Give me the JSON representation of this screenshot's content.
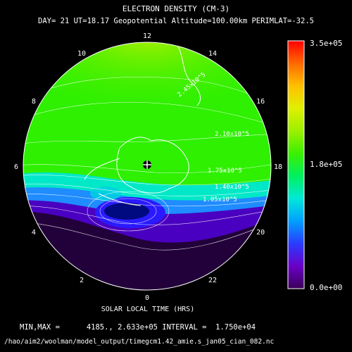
{
  "chart_data": {
    "type": "heatmap",
    "title": "ELECTRON DENSITY (CM-3)",
    "subtitle": "DAY= 21 UT=18.17 Geopotential Altitude=100.00km PERIMLAT=-32.5",
    "xlabel": "SOLAR LOCAL TIME (HRS)",
    "local_time_labels": [
      "12",
      "14",
      "16",
      "18",
      "20",
      "22",
      "0",
      "2",
      "4",
      "6",
      "8",
      "10"
    ],
    "local_time_hours": [
      12,
      14,
      16,
      18,
      20,
      22,
      0,
      2,
      4,
      6,
      8,
      10
    ],
    "colorbar": {
      "ticks": [
        "3.5e+05",
        "1.8e+05",
        "0.0e+00"
      ],
      "range": [
        0,
        350000
      ],
      "colors": [
        "#3a0057",
        "#6a00c8",
        "#2a3cff",
        "#00a0ff",
        "#00e8d8",
        "#00f060",
        "#3af000",
        "#9cf000",
        "#e0f000",
        "#ffc000",
        "#ff6a00",
        "#ff0000"
      ]
    },
    "contour_labels": [
      "2.10x10^5",
      "1.75x10^5",
      "1.40x10^5",
      "1.05x10^5",
      "2.45x10^5"
    ],
    "min": "4185.",
    "max": "2.633e+05",
    "interval": "1.750e+04",
    "minmax_text": "MIN,MAX =      4185., 2.633e+05 INTERVAL =  1.750e+04",
    "file_path": "/hao/aim2/woolman/model_output/timegcm1.42_amie.s_jan05_cian_082.nc"
  },
  "colors": {
    "background": "#000000",
    "foreground": "#ffffff",
    "high_density": "#3af000",
    "mid_density": "#00e8d8",
    "low_density": "#1a0028"
  }
}
